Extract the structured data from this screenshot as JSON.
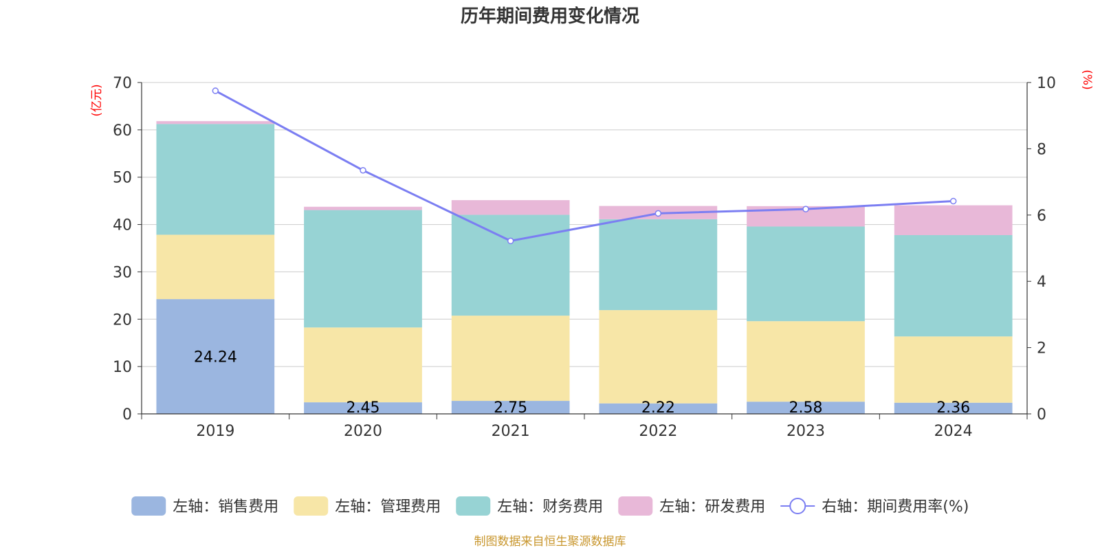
{
  "chart_data": {
    "type": "bar",
    "stacked": true,
    "title": "历年期间费用变化情况",
    "categories": [
      "2019",
      "2020",
      "2021",
      "2022",
      "2023",
      "2024"
    ],
    "left_axis": {
      "unit": "(亿元)",
      "min": 0,
      "max": 70,
      "ticks": [
        0,
        10,
        20,
        30,
        40,
        50,
        60,
        70
      ]
    },
    "right_axis": {
      "unit": "(%)",
      "min": 0,
      "max": 10,
      "ticks": [
        0,
        2,
        4,
        6,
        8,
        10
      ]
    },
    "series": [
      {
        "name": "左轴：销售费用",
        "axis": "left",
        "type": "bar",
        "color": "#9bb6e0",
        "values": [
          24.24,
          2.45,
          2.75,
          2.22,
          2.58,
          2.36
        ],
        "labels": [
          "24.24",
          "2.45",
          "2.75",
          "2.22",
          "2.58",
          "2.36"
        ]
      },
      {
        "name": "左轴：管理费用",
        "axis": "left",
        "type": "bar",
        "color": "#f7e6a7",
        "values": [
          13.6,
          15.8,
          18.0,
          19.7,
          17.0,
          14.0
        ]
      },
      {
        "name": "左轴：财务费用",
        "axis": "left",
        "type": "bar",
        "color": "#97d3d4",
        "values": [
          23.4,
          24.8,
          21.3,
          19.2,
          20.0,
          21.4
        ]
      },
      {
        "name": "左轴：研发费用",
        "axis": "left",
        "type": "bar",
        "color": "#e8b8d8",
        "values": [
          0.6,
          0.7,
          3.1,
          2.8,
          4.3,
          6.3
        ]
      },
      {
        "name": "右轴：期间费用率(%)",
        "axis": "right",
        "type": "line",
        "color": "#7b7ef2",
        "values": [
          9.75,
          7.35,
          5.22,
          6.05,
          6.18,
          6.42
        ]
      }
    ],
    "grid": true,
    "legend_position": "bottom"
  },
  "footer": {
    "source": "制图数据来自恒生聚源数据库"
  }
}
